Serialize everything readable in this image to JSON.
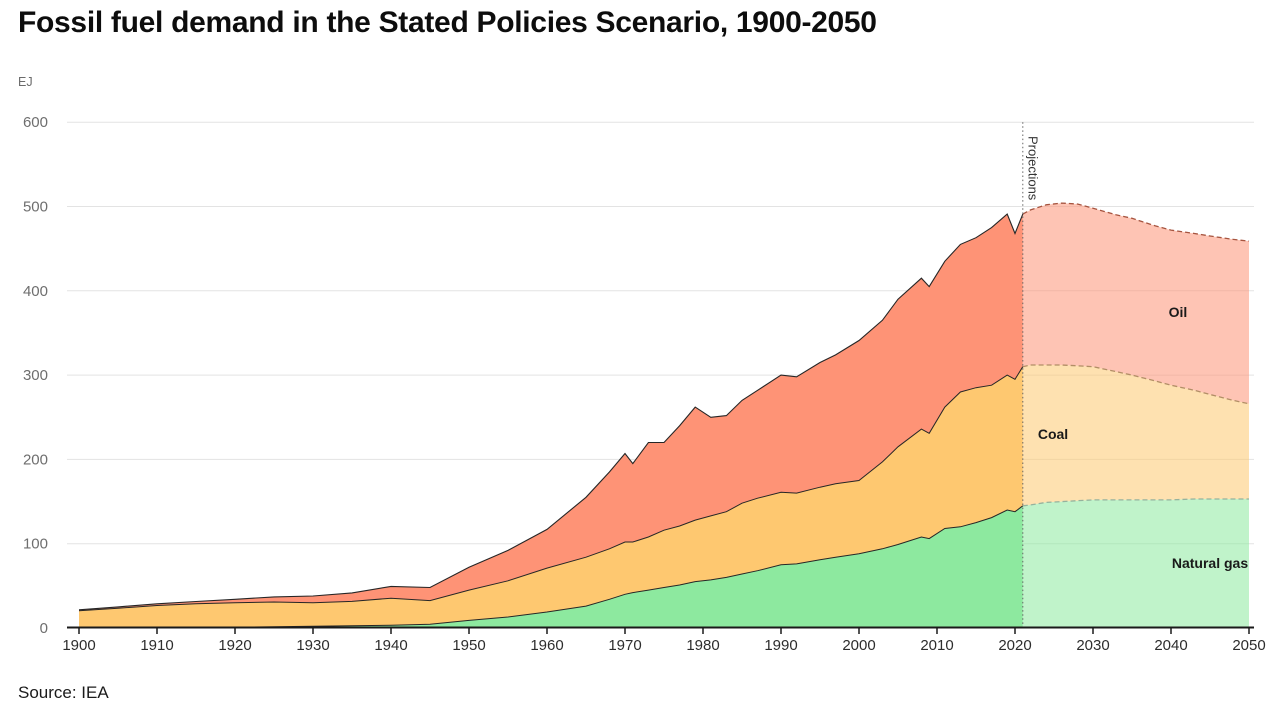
{
  "header": {
    "title": "Fossil fuel demand in the Stated Policies Scenario, 1900-2050",
    "unit": "EJ"
  },
  "source": {
    "text": "Source: IEA"
  },
  "chart_data": {
    "type": "area",
    "title": "Fossil fuel demand in the Stated Policies Scenario, 1900-2050",
    "ylabel": "EJ",
    "xlabel": "",
    "ylim": [
      0,
      600
    ],
    "xlim": [
      1900,
      2050
    ],
    "grid": "horizontal",
    "legend_position": "labels-inside-areas",
    "y_ticks": [
      0,
      100,
      200,
      300,
      400,
      500,
      600
    ],
    "x_ticks": [
      1900,
      1910,
      1920,
      1930,
      1940,
      1950,
      1960,
      1970,
      1980,
      1990,
      2000,
      2010,
      2020,
      2030,
      2040,
      2050
    ],
    "stack_order_bottom_to_top": [
      "Natural gas",
      "Coal",
      "Oil"
    ],
    "projection_start": 2021,
    "annotations": {
      "projections_label": "Projections",
      "oil_label": "Oil",
      "coal_label": "Coal",
      "gas_label": "Natural gas"
    },
    "colors": {
      "gas_fill": "#8DE99F",
      "coal_fill": "#FEC870",
      "oil_fill": "#FE9376",
      "projected_fill_opacity": 0.55,
      "historical_stroke": "#262626",
      "gas_dash_stroke": "#95B29D",
      "coal_dash_stroke": "#B28E66",
      "oil_dash_stroke": "#A6543F",
      "gridline": "#E3E3E3",
      "axis": "#1A1A1A",
      "divider": "#666666",
      "y_tick_text": "#6E6E6E",
      "x_tick_text": "#2D2D2D",
      "annotation_text": "#1A1A1A"
    },
    "series_note": "columns are [year, natural_gas_EJ, coal_EJ, oil_EJ]; values read off chart",
    "historical": [
      [
        1900,
        0.4,
        20,
        1.2
      ],
      [
        1905,
        0.5,
        23,
        1.5
      ],
      [
        1910,
        0.7,
        26,
        2.0
      ],
      [
        1915,
        0.8,
        28,
        2.6
      ],
      [
        1920,
        1.0,
        29,
        4.0
      ],
      [
        1925,
        1.4,
        29.5,
        6.0
      ],
      [
        1930,
        2.0,
        28,
        8.0
      ],
      [
        1935,
        2.6,
        29,
        10.0
      ],
      [
        1940,
        3.3,
        32,
        14.0
      ],
      [
        1945,
        4.5,
        28,
        15.5
      ],
      [
        1950,
        9,
        36,
        27
      ],
      [
        1955,
        13,
        43,
        36
      ],
      [
        1960,
        19,
        52,
        46
      ],
      [
        1965,
        26,
        58,
        71
      ],
      [
        1968,
        34,
        60,
        91
      ],
      [
        1970,
        40,
        62,
        105
      ],
      [
        1971,
        42,
        60,
        93
      ],
      [
        1973,
        45,
        63,
        112
      ],
      [
        1975,
        48,
        68,
        104
      ],
      [
        1977,
        51,
        70,
        119
      ],
      [
        1979,
        55,
        73,
        134
      ],
      [
        1981,
        57,
        76,
        117
      ],
      [
        1983,
        60,
        78,
        114
      ],
      [
        1985,
        64,
        84,
        122
      ],
      [
        1987,
        68,
        86,
        128
      ],
      [
        1990,
        75,
        86,
        139
      ],
      [
        1992,
        76,
        84,
        138
      ],
      [
        1995,
        81,
        86,
        148
      ],
      [
        1997,
        84,
        87,
        153
      ],
      [
        2000,
        88,
        87,
        166
      ],
      [
        2003,
        94,
        103,
        168
      ],
      [
        2005,
        99,
        116,
        175
      ],
      [
        2008,
        108,
        128,
        179
      ],
      [
        2009,
        106,
        125,
        174
      ],
      [
        2011,
        118,
        144,
        173
      ],
      [
        2013,
        120,
        160,
        175
      ],
      [
        2015,
        125,
        160,
        178
      ],
      [
        2017,
        131,
        157,
        187
      ],
      [
        2019,
        140,
        160,
        191
      ],
      [
        2020,
        138,
        157,
        173
      ],
      [
        2021,
        145,
        165,
        181
      ]
    ],
    "projected": [
      [
        2021,
        145,
        165,
        181
      ],
      [
        2022,
        146,
        166,
        184
      ],
      [
        2024,
        149,
        163,
        190
      ],
      [
        2026,
        150,
        162,
        192
      ],
      [
        2028,
        151,
        160,
        192
      ],
      [
        2030,
        152,
        158,
        188
      ],
      [
        2033,
        152,
        152,
        186
      ],
      [
        2035,
        152,
        148,
        186
      ],
      [
        2038,
        152,
        141,
        184
      ],
      [
        2040,
        152,
        136,
        184
      ],
      [
        2043,
        153,
        129,
        186
      ],
      [
        2045,
        153,
        124,
        188
      ],
      [
        2048,
        153,
        117,
        191
      ],
      [
        2050,
        153,
        113,
        193
      ]
    ]
  }
}
